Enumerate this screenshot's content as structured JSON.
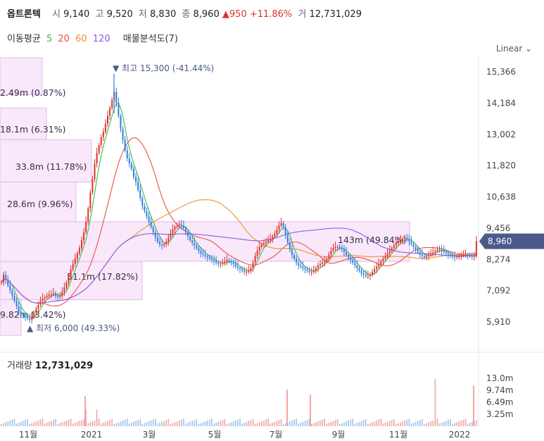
{
  "header": {
    "name": "옵트론텍",
    "open_label": "시",
    "open": "9,140",
    "high_label": "고",
    "high": "9,520",
    "low_label": "저",
    "low": "8,830",
    "close_label": "종",
    "close": "8,960",
    "change": "▲950",
    "change_pct": "+11.86%",
    "vol_label": "거",
    "volume": "12,731,029"
  },
  "indicators": {
    "ma_label": "이동평균",
    "ma": [
      {
        "period": "5",
        "color": "#3cb84a"
      },
      {
        "period": "20",
        "color": "#e8524a"
      },
      {
        "period": "60",
        "color": "#f0922e"
      },
      {
        "period": "120",
        "color": "#8a5ce0"
      }
    ],
    "profile_label": "매물분석도(7)"
  },
  "scale_button": "Linear",
  "price_axis": {
    "ticks": [
      "15,366",
      "14,184",
      "13,002",
      "11,820",
      "10,638",
      "9,456",
      "8,274",
      "7,092",
      "5,910"
    ],
    "current": "8,960"
  },
  "annotations": {
    "high": "▼ 최고 15,300 (-41.44%)",
    "low": "▲ 최저 6,000 (49.33%)"
  },
  "volume_axis": {
    "title": "거래량",
    "value": "12,731,029",
    "ticks": [
      "13.0m",
      "9.74m",
      "6.49m",
      "3.25m"
    ]
  },
  "time_axis": [
    "11월",
    "2021",
    "3월",
    "5월",
    "7월",
    "9월",
    "11월",
    "2022"
  ],
  "colors": {
    "up": "#e0312b",
    "down": "#2f7fe0",
    "profile": "#f8e8fa",
    "profile_border": "#e6b8ef",
    "accent": "#4a5a8a"
  },
  "chart_data": {
    "type": "candlestick",
    "title": "옵트론텍",
    "price_range": [
      5400,
      15900
    ],
    "volume_range": [
      0,
      13000000
    ],
    "volume_profile": [
      {
        "label": "2.49m (0.87%)",
        "low": 14500,
        "high": 15900
      },
      {
        "label": "18.1m (6.31%)",
        "low": 12800,
        "high": 14000
      },
      {
        "label": "33.8m (11.78%)",
        "low": 11200,
        "high": 12800
      },
      {
        "label": "28.6m (9.96%)",
        "low": 9700,
        "high": 11200
      },
      {
        "label": "143m (49.84%)",
        "low": 8200,
        "high": 9700
      },
      {
        "label": "51.1m (17.82%)",
        "low": 6750,
        "high": 8200
      },
      {
        "label": "9.82m (3.42%)",
        "low": 5400,
        "high": 6750
      }
    ],
    "price_series": [
      [
        7400,
        7700,
        7500,
        7300,
        7100,
        6900,
        6700,
        6500,
        6300,
        6200,
        6150,
        6100,
        6050,
        6000,
        6100,
        6250,
        6400,
        6550,
        6700,
        6800,
        6850,
        6900,
        6950,
        6950,
        7000,
        6900,
        6850,
        6900,
        7050,
        7200,
        7400,
        7650,
        7900,
        8100,
        8300,
        8500,
        8700,
        9000,
        9300,
        9700,
        10200,
        10800,
        11300,
        11900,
        12300,
        12600,
        12900,
        13100,
        13400,
        13700,
        14000,
        14300,
        14600,
        14200,
        13700,
        13200,
        12800,
        12400,
        12100,
        11900,
        11700,
        11400,
        11200,
        10900,
        10600,
        10300,
        10100,
        9900,
        9700,
        9500,
        9300,
        9100,
        8950,
        8850,
        8800,
        8850,
        8950,
        9100,
        9250,
        9400,
        9500,
        9550,
        9600,
        9550,
        9450,
        9300,
        9150,
        9000,
        8900,
        8800,
        8700,
        8600,
        8500,
        8450,
        8400,
        8350,
        8300,
        8250,
        8200,
        8150,
        8100,
        8100,
        8150,
        8200,
        8250,
        8200,
        8150,
        8100,
        8000,
        7950,
        7900,
        7850,
        7800,
        7800,
        7850,
        7950,
        8150,
        8400,
        8600,
        8750,
        8850,
        8900,
        8950,
        9000,
        9050,
        9150,
        9250,
        9400,
        9550,
        9650,
        9500,
        9200,
        8900,
        8650,
        8450,
        8300,
        8150,
        8050,
        8000,
        7950,
        7900,
        7850,
        7800,
        7800,
        7850,
        7950,
        8050,
        8100,
        8150,
        8200,
        8300,
        8450,
        8600,
        8700,
        8750,
        8750,
        8700,
        8650,
        8550,
        8450,
        8350,
        8250,
        8150,
        8050,
        7950,
        7850,
        7750,
        7700,
        7650,
        7650,
        7700,
        7800,
        7900,
        8000,
        8100,
        8200,
        8300,
        8400,
        8500,
        8600,
        8700,
        8800,
        8900,
        8950,
        9000,
        9050,
        9100,
        9050,
        8950,
        8850,
        8750,
        8650,
        8550,
        8450,
        8400,
        8350,
        8400,
        8450,
        8500,
        8550,
        8600,
        8650,
        8650,
        8600,
        8550,
        8500,
        8450,
        8400,
        8380,
        8350,
        8380,
        8400,
        8420,
        8450,
        8450,
        8430,
        8400,
        8380,
        8400,
        8960
      ]
    ]
  }
}
